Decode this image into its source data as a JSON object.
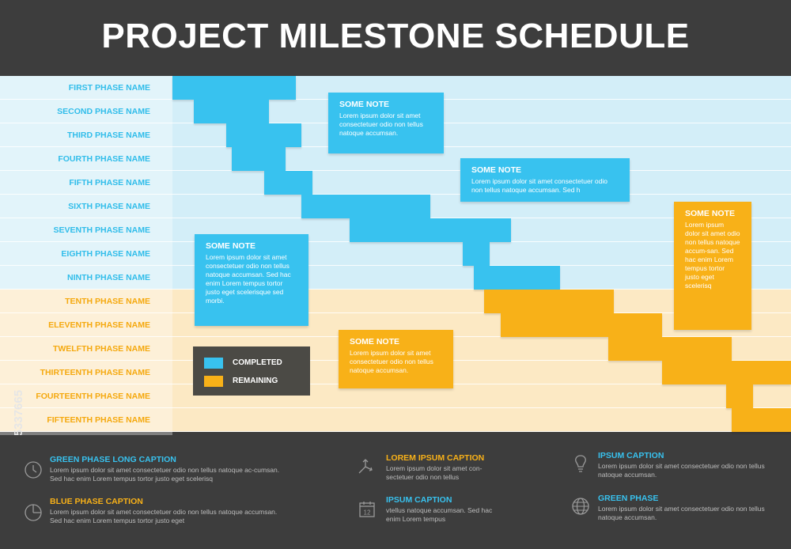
{
  "title": "PROJECT MILESTONE SCHEDULE",
  "colors": {
    "completed": "#38c2ef",
    "remaining": "#f8b118",
    "background": "#3d3d3d",
    "note_dark": "#4b4a45"
  },
  "chart_data": {
    "type": "bar",
    "subtype": "gantt",
    "categories": [
      "FIRST PHASE NAME",
      "SECOND PHASE NAME",
      "THIRD PHASE NAME",
      "FOURTH PHASE NAME",
      "FIFTH PHASE NAME",
      "SIXTH PHASE NAME",
      "SEVENTH PHASE NAME",
      "EIGHTH PHASE NAME",
      "NINTH PHASE NAME",
      "TENTH PHASE NAME",
      "ELEVENTH PHASE NAME",
      "TWELFTH PHASE NAME",
      "THIRTEENTH PHASE NAME",
      "FOURTEENTH PHASE NAME",
      "FIFTEENTH PHASE NAME"
    ],
    "start": [
      0,
      4,
      10,
      11,
      17,
      24,
      33,
      54,
      56,
      58,
      61,
      81,
      91,
      103,
      104
    ],
    "end": [
      23,
      18,
      24,
      21,
      26,
      48,
      63,
      59,
      72,
      82,
      91,
      104,
      115,
      108,
      115
    ],
    "status": [
      "completed",
      "completed",
      "completed",
      "completed",
      "completed",
      "completed",
      "completed",
      "completed",
      "completed",
      "remaining",
      "remaining",
      "remaining",
      "remaining",
      "remaining",
      "remaining"
    ],
    "xlim": [
      0,
      115
    ],
    "legend": [
      {
        "label": "COMPLETED",
        "status": "completed"
      },
      {
        "label": "REMAINING",
        "status": "remaining"
      }
    ],
    "legend_position": "bottom-left"
  },
  "notes": [
    {
      "title": "SOME NOTE",
      "text": "Lorem ipsum dolor sit amet consectetuer odio non tellus natoque accumsan."
    },
    {
      "title": "SOME NOTE",
      "text": "Lorem ipsum dolor sit amet consectetuer odio non tellus natoque accumsan. Sed h"
    },
    {
      "title": "SOME NOTE",
      "text": "Lorem ipsum dolor sit amet consectetuer odio non tellus natoque accumsan. Sed hac enim Lorem tempus tortor justo eget scelerisque sed morbi."
    },
    {
      "title": "SOME NOTE",
      "text": "Lorem ipsum dolor sit amet consectetuer odio non tellus natoque accumsan."
    },
    {
      "title": "SOME NOTE",
      "text": "Lorem ipsum dolor sit amet odio non tellus natoque accum-san. Sed hac enim Lorem tempus tortor justo eget scelerisq"
    }
  ],
  "footer": [
    {
      "title": "GREEN PHASE LONG CAPTION",
      "text": "Lorem ipsum dolor sit amet consectetuer odio non tellus natoque ac-cumsan. Sed hac enim Lorem tempus tortor justo eget scelerisq",
      "icon": "clock-icon",
      "color": "#38c2ef"
    },
    {
      "title": "BLUE PHASE CAPTION",
      "text": "Lorem ipsum dolor sit amet consectetuer odio non tellus natoque accumsan. Sed hac enim Lorem tempus tortor justo eget",
      "icon": "pie-chart-icon",
      "color": "#f8b118"
    },
    {
      "title": "LOREM IPSUM CAPTION",
      "text": "Lorem ipsum dolor sit amet con-sectetuer odio non tellus",
      "icon": "arrows-icon",
      "color": "#f8b118"
    },
    {
      "title": "IPSUM CAPTION",
      "text": "vtellus natoque accumsan. Sed hac enim Lorem tempus",
      "icon": "calendar-icon",
      "color": "#38c2ef"
    },
    {
      "title": "IPSUM CAPTION",
      "text": "Lorem ipsum dolor sit amet consectetuer odio non tellus natoque accumsan.",
      "icon": "lightbulb-icon",
      "color": "#38c2ef"
    },
    {
      "title": "GREEN PHASE",
      "text": "Lorem ipsum dolor sit amet consectetuer odio non tellus natoque accumsan.",
      "icon": "globe-icon",
      "color": "#38c2ef"
    }
  ],
  "calendar_number": "12",
  "watermark_id": "245337665"
}
